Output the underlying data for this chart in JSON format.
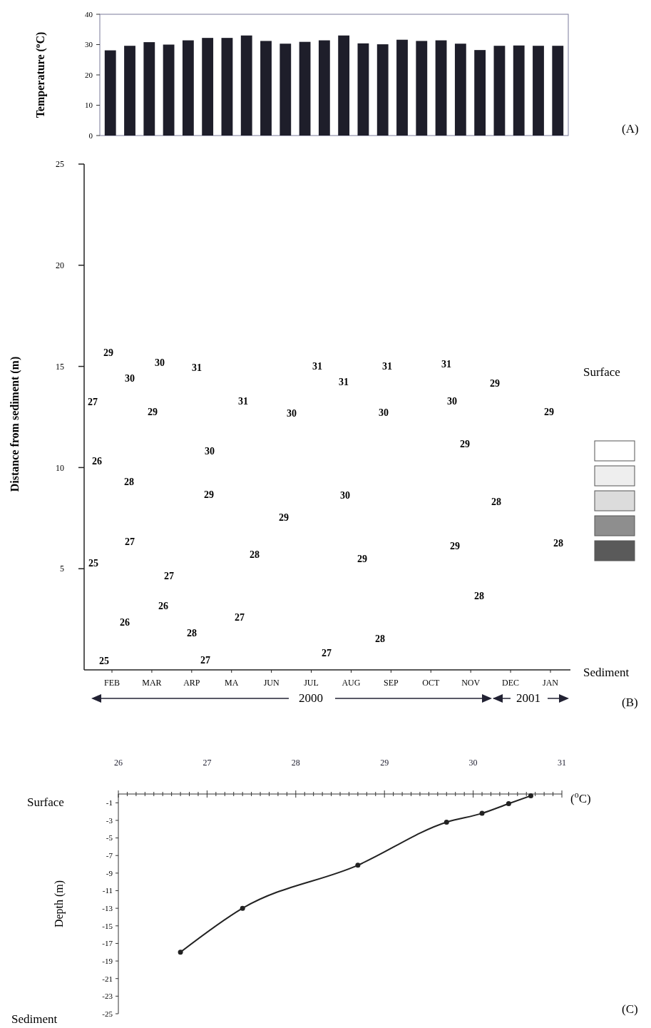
{
  "chart_data": [
    {
      "type": "bar",
      "ylabel": "Temperature ($^{o}$C)",
      "annotations": [
        "(A)"
      ],
      "categories": [
        null,
        null,
        null,
        null,
        null,
        null,
        null,
        null,
        null,
        null,
        null,
        null,
        null,
        null,
        null,
        null,
        null,
        null,
        null,
        null,
        null,
        null,
        null,
        null
      ],
      "values": [
        28.1,
        29.6,
        30.8,
        30,
        31.4,
        32.2,
        32.2,
        33,
        31.2,
        30.3,
        30.9,
        31.4,
        33,
        30.4,
        30.1,
        31.6,
        31.2,
        31.4,
        30.3,
        28.2,
        29.6,
        29.7,
        29.6,
        29.6
      ],
      "color": "#1e1e2a",
      "ylim": [
        0,
        40
      ],
      "yticks": [
        0,
        10,
        20,
        30,
        40
      ],
      "tick_labels": "y"
    },
    {
      "type": "scatter",
      "ylabel": "Distance from sediment (m)",
      "categories": [
        "FEB",
        "MAR",
        "ARP",
        "MA",
        "JUN",
        "JUL",
        "AUG",
        "SEP",
        "OCT",
        "NOV",
        "DEC",
        "JAN"
      ],
      "ylim": [
        0,
        25
      ],
      "yticks": [
        5,
        10,
        15,
        20,
        25
      ],
      "annotations": [
        "29",
        "30",
        "27",
        "26",
        "28",
        "27",
        "25",
        "26",
        "25",
        "30",
        "29",
        "27",
        "26",
        "31",
        "30",
        "29",
        "28",
        "27",
        "31",
        "28",
        "27",
        "30",
        "29",
        "31",
        "27",
        "31",
        "30",
        "29",
        "31",
        "30",
        "28",
        "31",
        "30",
        "29",
        "29",
        "28",
        "29",
        "28",
        "29",
        "28",
        "Surface",
        "Sediment",
        "2000",
        "2001",
        "(B)"
      ]
    },
    {
      "type": "line",
      "ylabel": "Depth (m)",
      "xlabel": "($^{o}$C)",
      "annotations": [
        "Surface",
        "Sediment",
        "(C)"
      ],
      "x": [
        26.7,
        27.4,
        28.7,
        29.7,
        30.1,
        30.4,
        30.65
      ],
      "series": [
        {
          "color": "#222222",
          "values": [
            -18,
            -13,
            -8.1,
            -3.2,
            -2.2,
            -1.1,
            -0.2
          ]
        }
      ],
      "marker": "circle",
      "line_style": "solid",
      "xlim": [
        26,
        31
      ],
      "ylim": [
        -25,
        0
      ],
      "yticks": [
        -1,
        -3,
        -5,
        -7,
        -9,
        -11,
        -13,
        -15,
        -17,
        -19,
        -21,
        -23,
        -25
      ],
      "xticks": [
        26,
        {
          "value": 26.1,
          "label": null
        },
        {
          "value": 26.2,
          "label": null
        },
        {
          "value": 26.3,
          "label": null
        },
        {
          "value": 26.4,
          "label": null
        },
        {
          "value": 26.5,
          "label": null
        },
        {
          "value": 26.6,
          "label": null
        },
        {
          "value": 26.7,
          "label": null
        },
        {
          "value": 26.8,
          "label": null
        },
        {
          "value": 26.9,
          "label": null
        },
        27,
        {
          "value": 27.1,
          "label": null
        },
        {
          "value": 27.2,
          "label": null
        },
        {
          "value": 27.3,
          "label": null
        },
        {
          "value": 27.4,
          "label": null
        },
        {
          "value": 27.5,
          "label": null
        },
        {
          "value": 27.6,
          "label": null
        },
        {
          "value": 27.7,
          "label": null
        },
        {
          "value": 27.8,
          "label": null
        },
        {
          "value": 27.9,
          "label": null
        },
        28,
        {
          "value": 28.1,
          "label": null
        },
        {
          "value": 28.2,
          "label": null
        },
        {
          "value": 28.3,
          "label": null
        },
        {
          "value": 28.4,
          "label": null
        },
        {
          "value": 28.5,
          "label": null
        },
        {
          "value": 28.6,
          "label": null
        },
        {
          "value": 28.7,
          "label": null
        },
        {
          "value": 28.8,
          "label": null
        },
        {
          "value": 28.9,
          "label": null
        },
        29,
        {
          "value": 29.1,
          "label": null
        },
        {
          "value": 29.2,
          "label": null
        },
        {
          "value": 29.3,
          "label": null
        },
        {
          "value": 29.4,
          "label": null
        },
        {
          "value": 29.5,
          "label": null
        },
        {
          "value": 29.6,
          "label": null
        },
        {
          "value": 29.7,
          "label": null
        },
        {
          "value": 29.8,
          "label": null
        },
        {
          "value": 29.9,
          "label": null
        },
        30,
        {
          "value": 30.1,
          "label": null
        },
        {
          "value": 30.2,
          "label": null
        },
        {
          "value": 30.3,
          "label": null
        },
        {
          "value": 30.4,
          "label": null
        },
        {
          "value": 30.5,
          "label": null
        },
        {
          "value": 30.6,
          "label": null
        },
        {
          "value": 30.7,
          "label": null
        },
        {
          "value": 30.8,
          "label": null
        },
        {
          "value": 30.9,
          "label": null
        },
        31
      ]
    }
  ]
}
